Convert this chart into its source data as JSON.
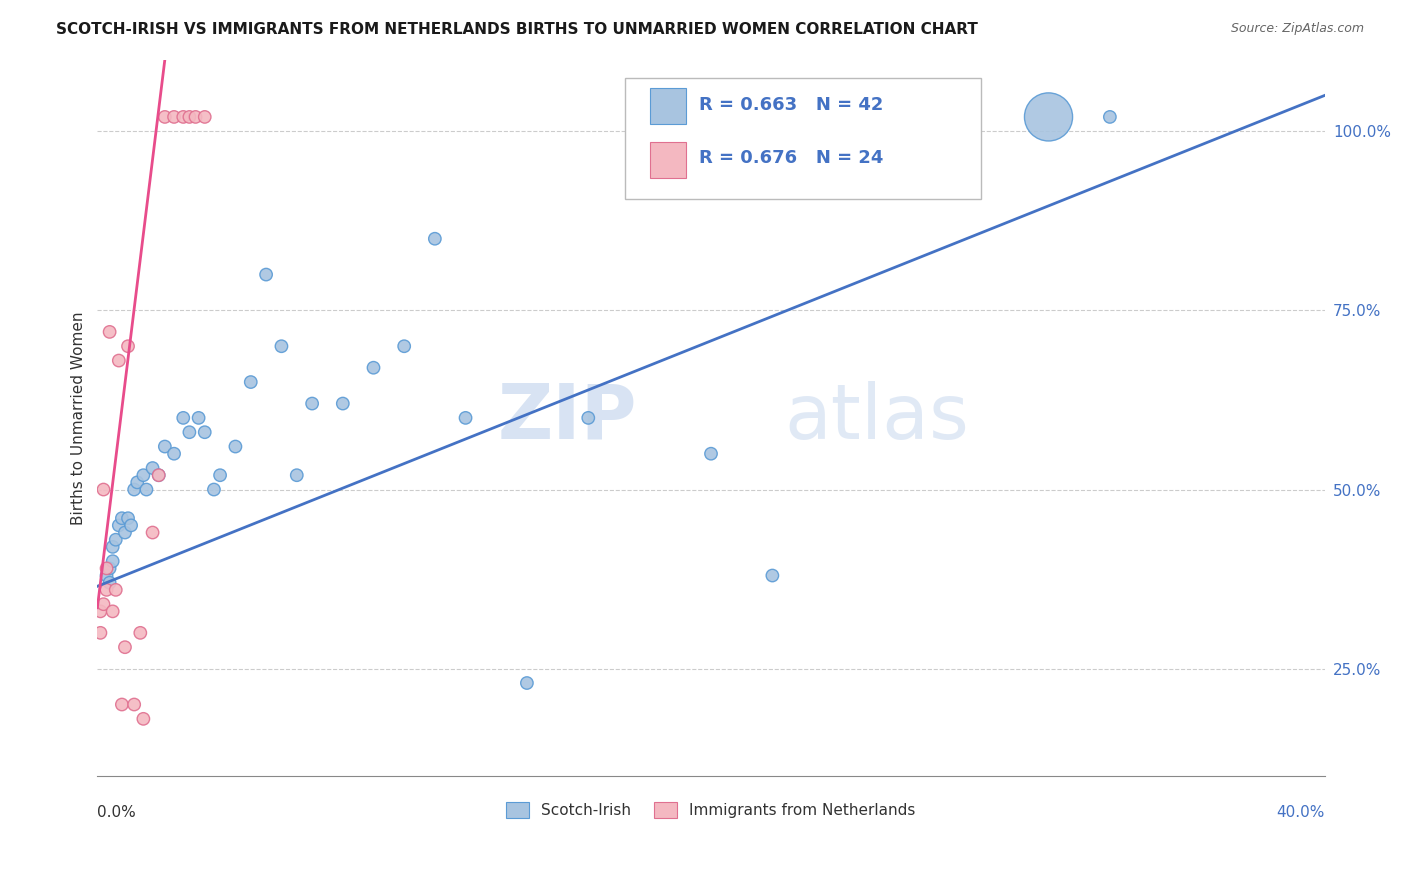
{
  "title": "SCOTCH-IRISH VS IMMIGRANTS FROM NETHERLANDS BIRTHS TO UNMARRIED WOMEN CORRELATION CHART",
  "source": "Source: ZipAtlas.com",
  "ylabel": "Births to Unmarried Women",
  "yticks": [
    0.25,
    0.5,
    0.75,
    1.0
  ],
  "ytick_labels": [
    "25.0%",
    "50.0%",
    "75.0%",
    "100.0%"
  ],
  "xlim": [
    0.0,
    0.4
  ],
  "ylim": [
    0.1,
    1.1
  ],
  "legend_r1": "R = 0.663",
  "legend_n1": "N = 42",
  "legend_r2": "R = 0.676",
  "legend_n2": "N = 24",
  "watermark_zip": "ZIP",
  "watermark_atlas": "atlas",
  "blue_face": "#a8c4e0",
  "blue_edge": "#5b9bd5",
  "pink_face": "#f4b8c1",
  "pink_edge": "#e07090",
  "blue_line_color": "#4472C4",
  "pink_line_color": "#E84C8B",
  "scotch_irish_x": [
    0.003,
    0.004,
    0.004,
    0.005,
    0.005,
    0.006,
    0.007,
    0.008,
    0.009,
    0.01,
    0.011,
    0.012,
    0.013,
    0.015,
    0.016,
    0.018,
    0.02,
    0.022,
    0.025,
    0.028,
    0.03,
    0.033,
    0.035,
    0.038,
    0.04,
    0.045,
    0.05,
    0.055,
    0.06,
    0.065,
    0.07,
    0.08,
    0.09,
    0.1,
    0.11,
    0.12,
    0.14,
    0.16,
    0.2,
    0.22,
    0.31,
    0.33
  ],
  "scotch_irish_y": [
    0.38,
    0.37,
    0.39,
    0.4,
    0.42,
    0.43,
    0.45,
    0.46,
    0.44,
    0.46,
    0.45,
    0.5,
    0.51,
    0.52,
    0.5,
    0.53,
    0.52,
    0.56,
    0.55,
    0.6,
    0.58,
    0.6,
    0.58,
    0.5,
    0.52,
    0.56,
    0.65,
    0.8,
    0.7,
    0.52,
    0.62,
    0.62,
    0.67,
    0.7,
    0.85,
    0.6,
    0.23,
    0.6,
    0.55,
    0.38,
    1.02,
    1.02
  ],
  "scotch_irish_sizes": [
    80,
    80,
    80,
    80,
    80,
    80,
    80,
    80,
    80,
    80,
    80,
    80,
    80,
    80,
    80,
    80,
    80,
    80,
    80,
    80,
    80,
    80,
    80,
    80,
    80,
    80,
    80,
    80,
    80,
    80,
    80,
    80,
    80,
    80,
    80,
    80,
    80,
    80,
    80,
    80,
    1200,
    80
  ],
  "netherlands_x": [
    0.001,
    0.001,
    0.002,
    0.002,
    0.003,
    0.003,
    0.004,
    0.005,
    0.006,
    0.007,
    0.008,
    0.009,
    0.01,
    0.012,
    0.014,
    0.015,
    0.018,
    0.02,
    0.022,
    0.025,
    0.028,
    0.03,
    0.032,
    0.035
  ],
  "netherlands_y": [
    0.33,
    0.3,
    0.34,
    0.5,
    0.36,
    0.39,
    0.72,
    0.33,
    0.36,
    0.68,
    0.2,
    0.28,
    0.7,
    0.2,
    0.3,
    0.18,
    0.44,
    0.52,
    1.02,
    1.02,
    1.02,
    1.02,
    1.02,
    1.02
  ],
  "netherlands_sizes": [
    80,
    80,
    80,
    80,
    80,
    80,
    80,
    80,
    80,
    80,
    80,
    80,
    80,
    80,
    80,
    80,
    80,
    80,
    80,
    80,
    80,
    80,
    80,
    80
  ]
}
